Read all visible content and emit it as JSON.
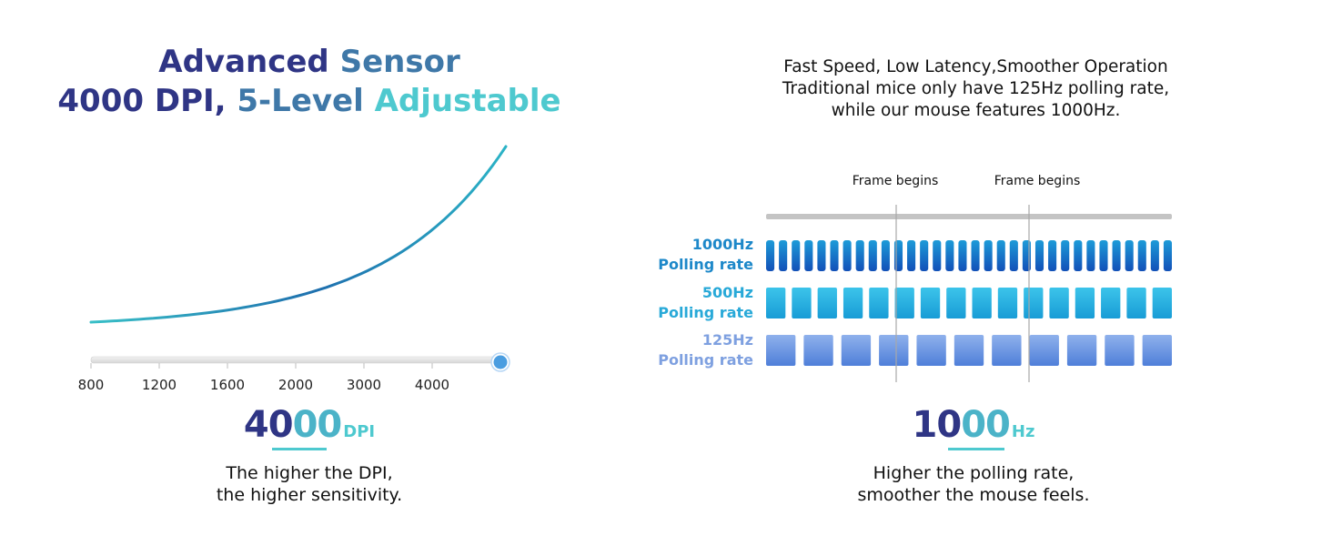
{
  "left": {
    "headline": {
      "line1": {
        "part1": "Advanced ",
        "part2": "Sensor"
      },
      "line2": {
        "part1": "4000 DPI, ",
        "part2": "5-Level ",
        "part3": "Adjustable"
      }
    },
    "chart_data": {
      "type": "line",
      "x": [
        "800",
        "1200",
        "1600",
        "2000",
        "3000",
        "4000"
      ],
      "title": "",
      "xlabel": "",
      "ylabel": "",
      "series": [
        {
          "values": [
            1,
            2,
            4,
            8,
            16,
            32
          ]
        }
      ],
      "slider_value": "4000",
      "grid": false,
      "colors": {
        "line_start": "#38bfc7",
        "line_mid": "#1e6fae",
        "line_end": "#2bb3c6",
        "knob": "#4a9de0"
      }
    },
    "stat": {
      "number_a": "40",
      "number_b": "00",
      "unit": "DPI"
    },
    "caption": {
      "line1": "The higher the DPI,",
      "line2": "the higher sensitivity."
    }
  },
  "right": {
    "intro": {
      "line1": "Fast Speed, Low Latency,Smoother Operation",
      "line2": "Traditional mice only have 125Hz polling rate,",
      "line3": "while our mouse features 1000Hz."
    },
    "frame_labels": [
      "Frame begins",
      "Frame begins"
    ],
    "rows": [
      {
        "rate": "1000Hz",
        "label": "Polling rate",
        "pulses": 32,
        "color_top": "#1d9bd8",
        "color_bottom": "#1250b8",
        "text_color": "#1d88c9"
      },
      {
        "rate": "500Hz",
        "label": "Polling rate",
        "pulses": 16,
        "color_top": "#3cc4ea",
        "color_bottom": "#189cd6",
        "text_color": "#28a9d8"
      },
      {
        "rate": "125Hz",
        "label": "Polling rate",
        "pulses": 11,
        "color_top": "#8fb1ec",
        "color_bottom": "#4f7fd9",
        "text_color": "#7ea0e0"
      }
    ],
    "stat": {
      "number_a": "10",
      "number_b": "00",
      "unit": "Hz"
    },
    "caption": {
      "line1": "Higher the polling rate,",
      "line2": "smoother the mouse feels."
    }
  }
}
